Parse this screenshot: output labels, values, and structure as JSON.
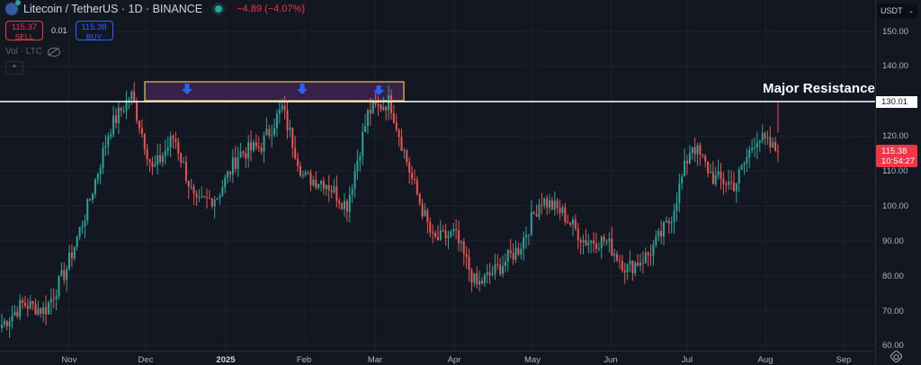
{
  "header": {
    "symbol": "Litecoin / TetherUS · 1D · BINANCE",
    "change": "−4.89 (−4.07%)"
  },
  "trade": {
    "sell_price": "115.37",
    "sell_label": "SELL",
    "spread": "0.01",
    "buy_price": "115.38",
    "buy_label": "BUY"
  },
  "indicator": {
    "volume_label": "Vol · LTC",
    "collapse_glyph": "^"
  },
  "currency": {
    "selected": "USDT",
    "chevron": "⌄"
  },
  "price_axis": {
    "labels": [
      "150.00",
      "140.00",
      "120.00",
      "110.00",
      "100.00",
      "90.00",
      "80.00",
      "70.00",
      "60.00"
    ],
    "resistance_tag": "130.01",
    "current_price": "115.38",
    "countdown": "10:54:27"
  },
  "time_axis": {
    "labels": [
      "Nov",
      "Dec",
      "2025",
      "Feb",
      "Mar",
      "Apr",
      "May",
      "Jun",
      "Jul",
      "Aug",
      "Sep"
    ]
  },
  "annotations": {
    "resistance_label": "Major Resistance"
  },
  "colors": {
    "background": "#131722",
    "up": "#26a69a",
    "down": "#ef5350",
    "resistance_box_fill": "#3d2450",
    "resistance_box_border": "#e6c84a",
    "arrow": "#2962ff",
    "resistance_line": "#ffffff",
    "price_tag": "#f23645"
  },
  "chart_data": {
    "type": "candlestick",
    "title": "Litecoin / TetherUS · 1D · BINANCE",
    "xlabel": "",
    "ylabel": "USDT",
    "ylim": [
      58,
      155
    ],
    "grid": true,
    "x_ticks": [
      "Nov",
      "Dec",
      "2025",
      "Feb",
      "Mar",
      "Apr",
      "May",
      "Jun",
      "Jul",
      "Aug",
      "Sep"
    ],
    "y_ticks": [
      60,
      70,
      80,
      90,
      100,
      110,
      120,
      130,
      140,
      150
    ],
    "current_price": 115.38,
    "last_change": -4.89,
    "last_change_pct": -4.07,
    "resistance_level": 130.01,
    "resistance_zone": {
      "from": "late Nov 2024",
      "to": "mid Mar 2025",
      "low": 130.0,
      "high": 135.5
    },
    "rejection_arrows": [
      "mid Dec 2024",
      "early Feb 2025",
      "early Mar 2025"
    ],
    "approx_closes": [
      {
        "t": "Oct end",
        "c": 66
      },
      {
        "t": "Nov start",
        "c": 72
      },
      {
        "t": "Nov mid",
        "c": 70
      },
      {
        "t": "Nov 20",
        "c": 82
      },
      {
        "t": "Nov 28",
        "c": 100
      },
      {
        "t": "Dec 2",
        "c": 122
      },
      {
        "t": "Dec 5",
        "c": 132
      },
      {
        "t": "Dec 10",
        "c": 110
      },
      {
        "t": "Dec 15",
        "c": 120
      },
      {
        "t": "Dec 20",
        "c": 100
      },
      {
        "t": "Dec 31",
        "c": 103
      },
      {
        "t": "Jan 6",
        "c": 115
      },
      {
        "t": "Jan 15",
        "c": 117
      },
      {
        "t": "Jan 20",
        "c": 128
      },
      {
        "t": "Jan 27",
        "c": 108
      },
      {
        "t": "Feb 3",
        "c": 107
      },
      {
        "t": "Feb 10",
        "c": 100
      },
      {
        "t": "Feb 17",
        "c": 127
      },
      {
        "t": "Feb 25",
        "c": 130
      },
      {
        "t": "Mar 3",
        "c": 108
      },
      {
        "t": "Mar 10",
        "c": 90
      },
      {
        "t": "Mar 25",
        "c": 92
      },
      {
        "t": "Apr 7",
        "c": 77
      },
      {
        "t": "Apr 20",
        "c": 82
      },
      {
        "t": "May 1",
        "c": 88
      },
      {
        "t": "May 10",
        "c": 102
      },
      {
        "t": "May 20",
        "c": 98
      },
      {
        "t": "Jun 1",
        "c": 90
      },
      {
        "t": "Jun 10",
        "c": 90
      },
      {
        "t": "Jun 22",
        "c": 82
      },
      {
        "t": "Jul 1",
        "c": 86
      },
      {
        "t": "Jul 10",
        "c": 96
      },
      {
        "t": "Jul 20",
        "c": 118
      },
      {
        "t": "Jul 28",
        "c": 108
      },
      {
        "t": "Aug 2",
        "c": 106
      },
      {
        "t": "Aug 4",
        "c": 120
      },
      {
        "t": "Aug 6",
        "c": 115.38
      }
    ]
  }
}
